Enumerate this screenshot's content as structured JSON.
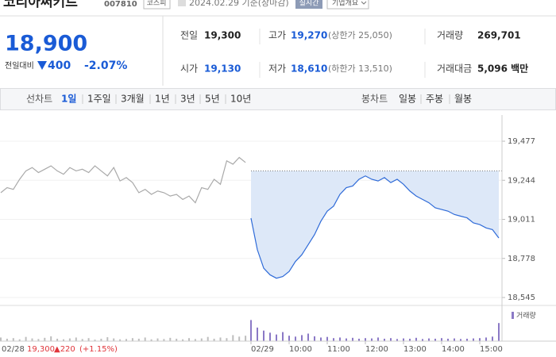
{
  "header": {
    "name": "코리아써키트",
    "code": "007810",
    "market": "코스피",
    "date": "2024.02.29 기준(장마감)",
    "realtime": "실시간",
    "company": "기업개요"
  },
  "price": {
    "current": "18,900",
    "change_label": "전일대비",
    "change": "400",
    "change_pct": "-2.07%"
  },
  "stats": {
    "rows": [
      [
        {
          "label": "전일",
          "value": "19,300"
        },
        {
          "label": "고가",
          "value": "19,270",
          "note": "(상한가 25,050)"
        },
        {
          "label": "거래량",
          "value": "269,701"
        }
      ],
      [
        {
          "label": "시가",
          "value": "19,130"
        },
        {
          "label": "저가",
          "value": "18,610",
          "note": "(하한가 13,510)"
        },
        {
          "label": "거래대금",
          "value": "5,096 백만"
        }
      ]
    ]
  },
  "tabs": {
    "line_label": "선차트",
    "line": [
      "1일",
      "1주일",
      "3개월",
      "1년",
      "3년",
      "5년",
      "10년"
    ],
    "candle_label": "봉차트",
    "candle": [
      "일봉",
      "주봉",
      "월봉"
    ]
  },
  "footer": {
    "date": "02/28",
    "close": "19,300",
    "change": "▲220",
    "pct": "(+1.15%)"
  },
  "chart_data": {
    "type": "line",
    "categories": [
      null,
      null,
      null,
      null,
      null,
      null,
      null,
      null,
      null,
      null,
      null,
      null,
      null,
      null,
      null,
      null,
      null,
      null,
      null,
      null,
      null,
      null,
      null,
      null,
      null,
      null,
      null,
      null,
      null,
      null,
      null,
      null,
      null,
      null,
      null,
      null,
      null,
      null,
      null,
      null,
      "02/29",
      null,
      null,
      null,
      null,
      null,
      "10:00",
      null,
      null,
      null,
      null,
      null,
      "11:00",
      null,
      null,
      null,
      null,
      null,
      "12:00",
      null,
      null,
      null,
      null,
      null,
      "13:00",
      null,
      null,
      null,
      null,
      null,
      "14:00",
      null,
      null,
      null,
      null,
      null,
      "15:00",
      null,
      null,
      null
    ],
    "series": [
      {
        "color": "#a9a9a9",
        "values": [
          19170,
          19200,
          19190,
          19250,
          19300,
          19320,
          19290,
          19310,
          19330,
          19300,
          19280,
          19320,
          19300,
          19310,
          19290,
          19330,
          19300,
          19270,
          19320,
          19240,
          19260,
          19230,
          19170,
          19190,
          19160,
          19180,
          19170,
          19150,
          19160,
          19130,
          19150,
          19110,
          19200,
          19190,
          19250,
          19220,
          19360,
          19340,
          19380,
          19350,
          null,
          null,
          null,
          null,
          null,
          null,
          null,
          null,
          null,
          null,
          null,
          null,
          null,
          null,
          null,
          null,
          null,
          null,
          null,
          null,
          null,
          null,
          null,
          null,
          null,
          null,
          null,
          null,
          null,
          null,
          null,
          null,
          null,
          null,
          null,
          null,
          null,
          null,
          null,
          null
        ]
      },
      {
        "color": "#2f6bd8",
        "fill": "#dde8f8",
        "values": [
          null,
          null,
          null,
          null,
          null,
          null,
          null,
          null,
          null,
          null,
          null,
          null,
          null,
          null,
          null,
          null,
          null,
          null,
          null,
          null,
          null,
          null,
          null,
          null,
          null,
          null,
          null,
          null,
          null,
          null,
          null,
          null,
          null,
          null,
          null,
          null,
          null,
          null,
          null,
          null,
          19018,
          18830,
          18720,
          18680,
          18660,
          18670,
          18700,
          18760,
          18800,
          18860,
          18920,
          19000,
          19060,
          19090,
          19160,
          19200,
          19210,
          19250,
          19270,
          19250,
          19240,
          19260,
          19230,
          19250,
          19220,
          19180,
          19150,
          19130,
          19110,
          19080,
          19070,
          19060,
          19040,
          19030,
          19020,
          18990,
          18980,
          18960,
          18950,
          18900
        ]
      }
    ],
    "ref_line": 19300,
    "ylim": [
      18545,
      19477
    ],
    "yticks": [
      {
        "value": 18545,
        "label": "18,545"
      },
      {
        "value": 18778,
        "label": "18,778"
      },
      {
        "value": 19011,
        "label": "19,011"
      },
      {
        "value": 19244,
        "label": "19,244"
      },
      {
        "value": 19477,
        "label": "19,477"
      }
    ],
    "volume": {
      "name": "거래량",
      "color": "#8b79c6",
      "prev_color": "#bdbdbd",
      "vlim": [
        0,
        100
      ],
      "values": [
        12,
        8,
        10,
        6,
        14,
        9,
        7,
        11,
        16,
        8,
        6,
        9,
        12,
        7,
        10,
        5,
        8,
        13,
        9,
        6,
        7,
        10,
        8,
        12,
        6,
        9,
        7,
        11,
        8,
        6,
        10,
        7,
        9,
        14,
        8,
        12,
        10,
        20,
        15,
        18,
        70,
        45,
        35,
        28,
        22,
        30,
        18,
        15,
        20,
        25,
        16,
        12,
        14,
        10,
        12,
        9,
        11,
        8,
        10,
        9,
        12,
        8,
        10,
        7,
        9,
        8,
        11,
        7,
        9,
        8,
        10,
        8,
        9,
        7,
        8,
        9,
        10,
        12,
        15,
        60
      ]
    }
  }
}
